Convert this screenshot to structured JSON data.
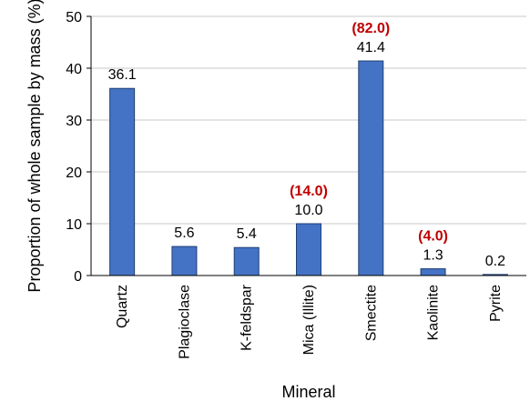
{
  "chart_data": {
    "type": "bar",
    "xlabel": "Mineral",
    "ylabel": "Proportion of whole sample by mass (%)",
    "ylim": [
      0,
      50
    ],
    "yticks": [
      0,
      10,
      20,
      30,
      40,
      50
    ],
    "grid": true,
    "categories": [
      "Quartz",
      "Plagioclase",
      "K-feldspar",
      "Mica (Illite)",
      "Smectite",
      "Kaolinite",
      "Pyrite"
    ],
    "values": [
      36.1,
      5.6,
      5.4,
      10.0,
      41.4,
      1.3,
      0.2
    ],
    "value_labels": [
      "36.1",
      "5.6",
      "5.4",
      "10.0",
      "41.4",
      "1.3",
      "0.2"
    ],
    "secondary_labels": [
      "",
      "",
      "",
      "(14.0)",
      "(82.0)",
      "(4.0)",
      ""
    ],
    "bar_color": "#4472C4",
    "bar_edge_color": "#1f3f73",
    "secondary_label_color": "#C00000"
  }
}
